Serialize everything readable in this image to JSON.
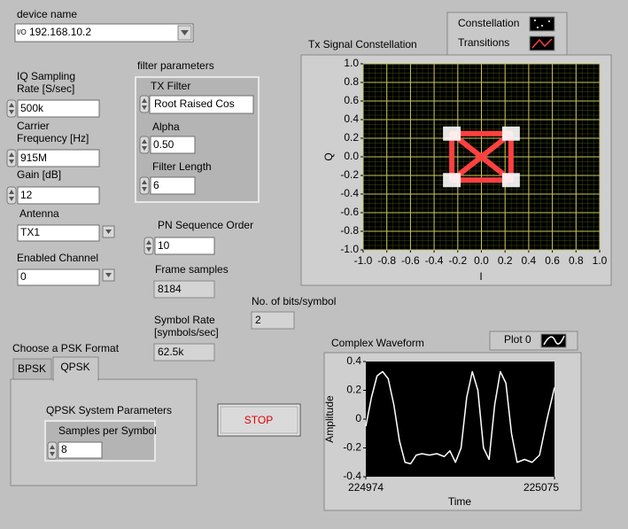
{
  "controls": {
    "device_name": {
      "label": "device name",
      "value": "192.168.10.2"
    },
    "iq_rate": {
      "label": [
        "IQ Sampling",
        "Rate [S/sec]"
      ],
      "value": "500k"
    },
    "carrier": {
      "label": [
        "Carrier",
        "Frequency [Hz]"
      ],
      "value": "915M"
    },
    "gain": {
      "label": "Gain [dB]",
      "value": "12"
    },
    "antenna": {
      "label": "Antenna",
      "value": "TX1"
    },
    "channel": {
      "label": "Enabled Channel",
      "value": "0"
    },
    "filter": {
      "label": "filter parameters",
      "tx_filter_label": "TX Filter",
      "tx_filter": "Root Raised Cos",
      "alpha_label": "Alpha",
      "alpha": "0.50",
      "length_label": "Filter Length",
      "length": "6"
    },
    "pn_order": {
      "label": "PN Sequence Order",
      "value": "10"
    },
    "frame_samples": {
      "label": "Frame samples",
      "value": "8184"
    },
    "symbol_rate": {
      "label": [
        "Symbol Rate",
        "[symbols/sec]"
      ],
      "value": "62.5k"
    },
    "bits_per_symbol": {
      "label": "No. of bits/symbol",
      "value": "2"
    },
    "psk": {
      "label": "Choose a PSK Format",
      "tabs": [
        "BPSK",
        "QPSK"
      ],
      "group": "QPSK System Parameters",
      "sps_label": "Samples per Symbol",
      "sps": "8"
    },
    "stop": "STOP"
  },
  "chart_data": [
    {
      "type": "scatter",
      "title": "Tx Signal Constellation",
      "x_label": "I",
      "y_label": "Q",
      "xlim": [
        -1,
        1
      ],
      "ylim": [
        -1,
        1
      ],
      "grid": true,
      "xticks": [
        {
          "value": -1,
          "label": "-1.0"
        },
        -0.8,
        -0.6,
        -0.4,
        -0.2,
        {
          "value": 0,
          "label": "0.0"
        },
        0.2,
        0.4,
        0.6,
        0.8,
        {
          "value": 1,
          "label": "1.0"
        }
      ],
      "yticks": [
        {
          "value": -1,
          "label": "-1.0"
        },
        -0.8,
        -0.6,
        -0.4,
        -0.2,
        {
          "value": 0,
          "label": "0.0"
        },
        0.2,
        0.4,
        0.6,
        0.8,
        {
          "value": 1,
          "label": "1.0"
        }
      ],
      "series": [
        {
          "name": "Constellation",
          "color": "#ffffff",
          "x": [
            -0.25,
            0.25,
            -0.25,
            0.25
          ],
          "y": [
            0.25,
            0.25,
            -0.25,
            -0.25
          ]
        },
        {
          "name": "Transitions",
          "color": "#ff4040",
          "x": [
            -0.25,
            0.25,
            0.25,
            -0.25,
            -0.25,
            0.25,
            -0.25,
            0.25,
            -0.25
          ],
          "y": [
            0.25,
            0.25,
            -0.25,
            -0.25,
            0.25,
            -0.25,
            -0.25,
            0.25,
            0.25
          ]
        }
      ]
    },
    {
      "type": "line",
      "title": "Complex Waveform",
      "x_label": "Time",
      "y_label": "Amplitude",
      "xlim": [
        224974,
        225075
      ],
      "xticks": [
        224974,
        225075
      ],
      "ylim": [
        -0.4,
        0.4
      ],
      "yticks": [
        -0.4,
        -0.2,
        0,
        0.2,
        0.4
      ],
      "series": [
        {
          "name": "Plot 0",
          "color": "#ffffff",
          "x": [
            224974,
            224977,
            224980,
            224983,
            224986,
            224989,
            224992,
            224995,
            224998,
            225001,
            225004,
            225008,
            225012,
            225016,
            225019,
            225022,
            225025,
            225028,
            225031,
            225034,
            225037,
            225040,
            225043,
            225046,
            225049,
            225052,
            225055,
            225059,
            225063,
            225067,
            225071,
            225075
          ],
          "values": [
            -0.05,
            0.15,
            0.3,
            0.33,
            0.28,
            0.1,
            -0.15,
            -0.3,
            -0.31,
            -0.25,
            -0.24,
            -0.25,
            -0.24,
            -0.26,
            -0.22,
            -0.3,
            -0.2,
            0.15,
            0.33,
            0.2,
            -0.2,
            -0.28,
            0.1,
            0.33,
            0.25,
            -0.1,
            -0.3,
            -0.28,
            -0.3,
            -0.25,
            0.0,
            0.22
          ]
        }
      ]
    }
  ]
}
